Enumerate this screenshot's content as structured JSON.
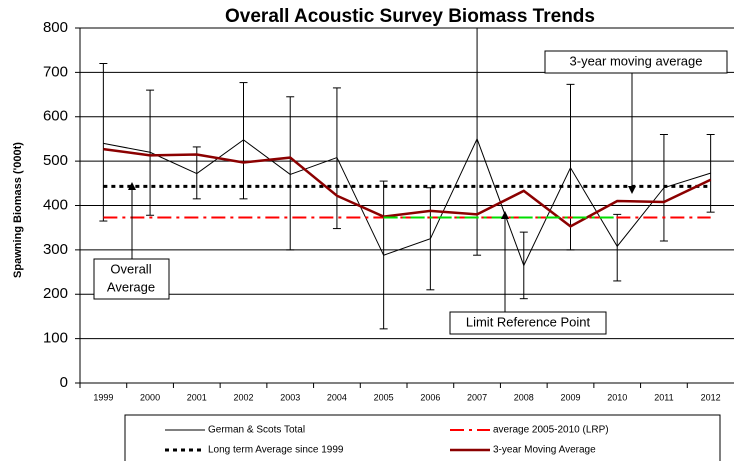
{
  "chart_data": {
    "type": "line",
    "title": "Overall Acoustic Survey Biomass Trends",
    "y_label": "Spawning Biomass ('000t)",
    "categories": [
      "1999",
      "2000",
      "2001",
      "2002",
      "2003",
      "2004",
      "2005",
      "2006",
      "2007",
      "2008",
      "2009",
      "2010",
      "2011",
      "2012"
    ],
    "series": [
      {
        "name": "German & Scots Total",
        "color": "#000000",
        "width": 1,
        "dash": "none",
        "values": [
          540,
          520,
          472,
          548,
          470,
          508,
          288,
          325,
          550,
          265,
          485,
          308,
          440,
          473
        ]
      },
      {
        "name": "average 2005-2010 (LRP)",
        "color": "#ff0000",
        "width": 2,
        "dash": "14 5 3 5",
        "values": [
          373,
          373,
          373,
          373,
          373,
          373,
          373,
          373,
          373,
          373,
          373,
          373,
          373,
          373
        ]
      },
      {
        "name": "Long term Average since 1999",
        "color": "#000000",
        "width": 3,
        "dash": "4 4",
        "values": [
          443,
          443,
          443,
          443,
          443,
          443,
          443,
          443,
          443,
          443,
          443,
          443,
          443,
          443
        ]
      },
      {
        "name": "3-year Moving Average",
        "color": "#8b0000",
        "width": 2.5,
        "dash": "none",
        "values": [
          527,
          513,
          515,
          497,
          508,
          422,
          375,
          388,
          380,
          433,
          353,
          410,
          408,
          458
        ]
      },
      {
        "color": "#00dd00",
        "width": 2,
        "dash": "14 5 3 5",
        "values": [
          null,
          null,
          null,
          null,
          null,
          null,
          373,
          373,
          373,
          373,
          373,
          373,
          null,
          null
        ]
      }
    ],
    "error_bars": {
      "low": [
        365,
        378,
        415,
        415,
        300,
        348,
        122,
        210,
        288,
        190,
        300,
        230,
        320,
        385
      ],
      "high": [
        720,
        660,
        532,
        677,
        645,
        665,
        455,
        440,
        830,
        340,
        673,
        380,
        560,
        560
      ]
    },
    "annotations": [
      "3-year moving average",
      "Overall",
      "Average",
      "Limit Reference Point"
    ],
    "ylim": [
      0,
      800
    ],
    "yticks": [
      0,
      100,
      200,
      300,
      400,
      500,
      600,
      700,
      800
    ],
    "grid": true
  }
}
